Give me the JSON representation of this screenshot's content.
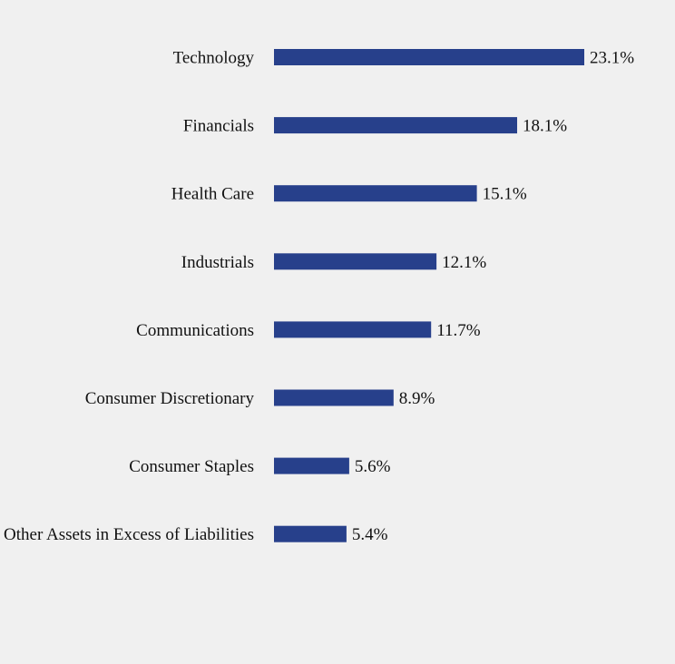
{
  "chart_data": {
    "type": "bar",
    "orientation": "horizontal",
    "categories": [
      "Technology",
      "Financials",
      "Health Care",
      "Industrials",
      "Communications",
      "Consumer Discretionary",
      "Consumer Staples",
      "Other Assets in Excess of Liabilities"
    ],
    "values": [
      23.1,
      18.1,
      15.1,
      12.1,
      11.7,
      8.9,
      5.6,
      5.4
    ],
    "value_labels": [
      "23.1%",
      "18.1%",
      "15.1%",
      "12.1%",
      "11.7%",
      "8.9%",
      "5.6%",
      "5.4%"
    ],
    "title": "",
    "xlabel": "",
    "ylabel": "",
    "xlim": [
      0,
      23.1
    ],
    "grid": false,
    "legend": "none",
    "colors": {
      "bar": "#27408b",
      "background": "#f0f0f0",
      "text": "#111111"
    }
  }
}
